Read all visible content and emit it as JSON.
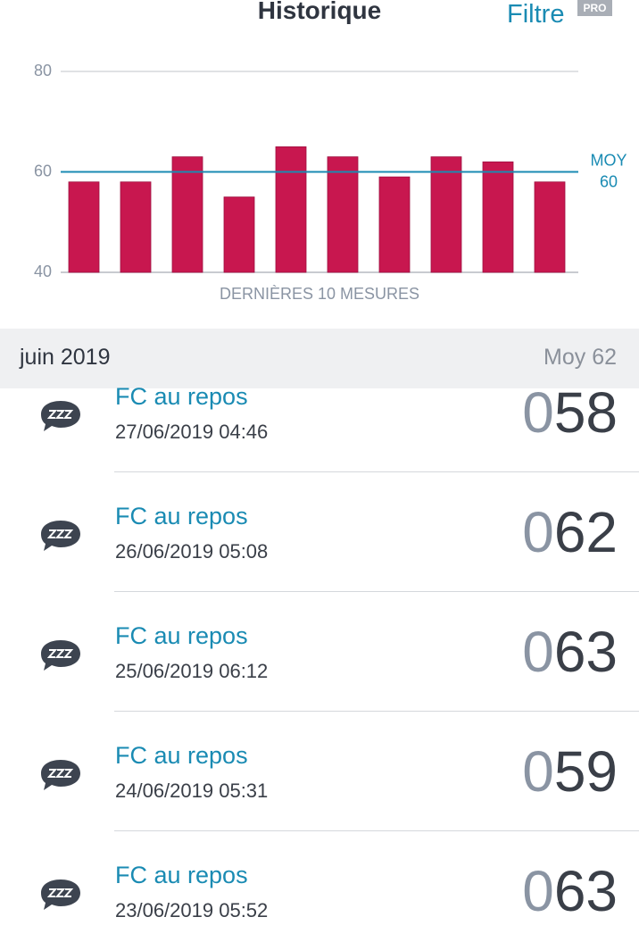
{
  "header": {
    "title": "Historique",
    "filter": "Filtre",
    "badge": "PRO"
  },
  "chart_data": {
    "type": "bar",
    "values": [
      58,
      58,
      63,
      55,
      65,
      63,
      59,
      63,
      62,
      58
    ],
    "color": "#c8174f",
    "ylim": [
      40,
      80
    ],
    "yticks": [
      40,
      60,
      80
    ],
    "grid": true,
    "xlabel": "DERNIÈRES 10 MESURES",
    "average": {
      "label": "MOY",
      "value": 60,
      "color": "#1a8bb3"
    }
  },
  "section": {
    "title": "juin 2019",
    "summary": "Moy 62"
  },
  "items": [
    {
      "title": "FC au repos",
      "date": "27/06/2019 04:46",
      "value": "058"
    },
    {
      "title": "FC au repos",
      "date": "26/06/2019 05:08",
      "value": "062"
    },
    {
      "title": "FC au repos",
      "date": "25/06/2019 06:12",
      "value": "063"
    },
    {
      "title": "FC au repos",
      "date": "24/06/2019 05:31",
      "value": "059"
    },
    {
      "title": "FC au repos",
      "date": "23/06/2019 05:52",
      "value": "063"
    }
  ]
}
